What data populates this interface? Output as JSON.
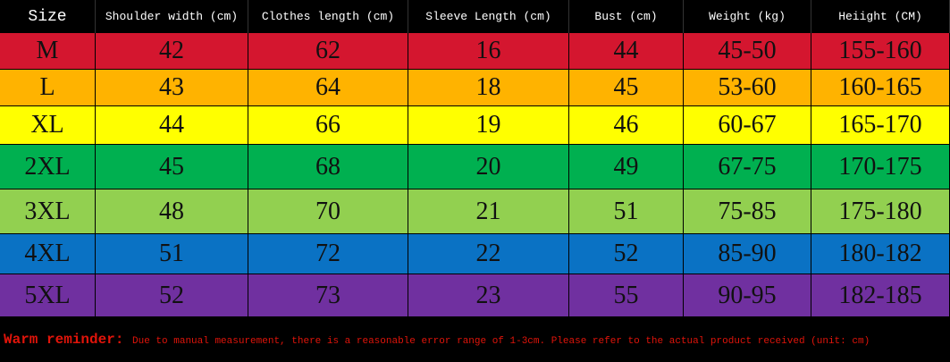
{
  "table": {
    "headers": [
      "Size",
      "Shoulder width (cm)",
      "Clothes length (cm)",
      "Sleeve Length (cm)",
      "Bust (cm)",
      "Weight (kg)",
      "Heiight (CM)"
    ],
    "rows": [
      [
        "M",
        42,
        62,
        16,
        44,
        "45-50",
        "155-160"
      ],
      [
        "L",
        43,
        64,
        18,
        45,
        "53-60",
        "160-165"
      ],
      [
        "XL",
        44,
        66,
        19,
        46,
        "60-67",
        "165-170"
      ],
      [
        "2XL",
        45,
        68,
        20,
        49,
        "67-75",
        "170-175"
      ],
      [
        "3XL",
        48,
        70,
        21,
        51,
        "75-85",
        "175-180"
      ],
      [
        "4XL",
        51,
        72,
        22,
        52,
        "85-90",
        "180-182"
      ],
      [
        "5XL",
        52,
        73,
        23,
        55,
        "90-95",
        "182-185"
      ]
    ]
  },
  "footer": {
    "label": "Warm reminder:",
    "text": "Due to manual measurement, there is a reasonable error range of 1-3cm. Please refer to the actual product received (unit: cm)"
  }
}
